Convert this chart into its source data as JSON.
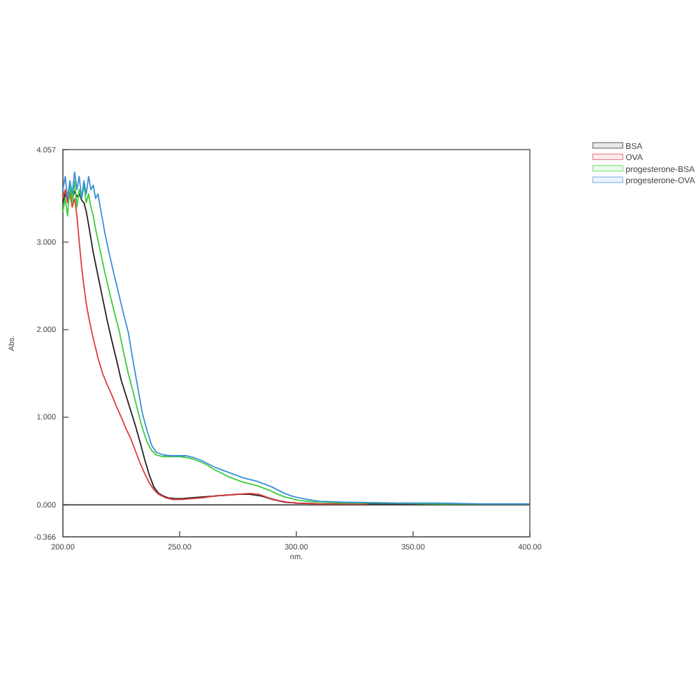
{
  "chart_data": {
    "type": "line",
    "xlabel": "nm.",
    "ylabel": "Abs.",
    "legend": "top right",
    "xlim": [
      200,
      400
    ],
    "ylim": [
      -0.366,
      4.057
    ],
    "xticks": [
      {
        "value": 200,
        "label": "200.00"
      },
      {
        "value": 250,
        "label": "250.00"
      },
      {
        "value": 300,
        "label": "300.00"
      },
      {
        "value": 350,
        "label": "350.00"
      },
      {
        "value": 400,
        "label": "400.00"
      }
    ],
    "yticks": [
      -0.366,
      {
        "value": 0,
        "label": "0.000"
      },
      {
        "value": 1,
        "label": "1.000"
      },
      {
        "value": 2,
        "label": "2.000"
      },
      {
        "value": 3,
        "label": "3.000"
      },
      4.057
    ],
    "ref_lines": [
      {
        "axis": "y",
        "value": 0,
        "color": "#555555"
      }
    ],
    "series": [
      {
        "name": "BSA",
        "color": "#222222",
        "x": [
          200,
          201,
          202,
          203,
          204,
          205,
          206,
          207,
          208,
          209,
          210,
          211,
          213,
          215,
          217,
          219,
          221,
          223,
          225,
          227,
          229,
          231,
          233,
          235,
          237,
          239,
          241,
          243,
          245,
          248,
          251,
          255,
          260,
          265,
          270,
          275,
          280,
          285,
          290,
          295,
          300,
          310,
          320,
          340,
          360,
          380,
          400
        ],
        "values": [
          3.45,
          3.55,
          3.48,
          3.6,
          3.5,
          3.58,
          3.52,
          3.55,
          3.48,
          3.45,
          3.35,
          3.2,
          2.88,
          2.62,
          2.36,
          2.1,
          1.87,
          1.65,
          1.42,
          1.25,
          1.08,
          0.91,
          0.72,
          0.52,
          0.34,
          0.2,
          0.13,
          0.1,
          0.08,
          0.07,
          0.07,
          0.08,
          0.09,
          0.1,
          0.11,
          0.12,
          0.12,
          0.1,
          0.06,
          0.03,
          0.02,
          0.01,
          0.01,
          0.01,
          0.01,
          0.01,
          0.01
        ]
      },
      {
        "name": "OVA",
        "color": "#e03c3c",
        "x": [
          200,
          201,
          202,
          203,
          204,
          205,
          206,
          207,
          208,
          209,
          210,
          211,
          212,
          213,
          215,
          217,
          219,
          221,
          223,
          225,
          227,
          229,
          231,
          233,
          235,
          237,
          239,
          241,
          244,
          247,
          251,
          255,
          260,
          265,
          270,
          275,
          280,
          284,
          288,
          292,
          296,
          300,
          310,
          330
        ],
        "values": [
          3.5,
          3.6,
          3.45,
          3.55,
          3.4,
          3.5,
          3.3,
          3.0,
          2.72,
          2.5,
          2.3,
          2.15,
          2.02,
          1.9,
          1.68,
          1.5,
          1.37,
          1.25,
          1.12,
          1.0,
          0.87,
          0.76,
          0.62,
          0.48,
          0.36,
          0.25,
          0.17,
          0.12,
          0.08,
          0.06,
          0.06,
          0.07,
          0.08,
          0.1,
          0.11,
          0.12,
          0.13,
          0.12,
          0.08,
          0.05,
          0.03,
          0.02,
          0.01,
          0.01
        ]
      },
      {
        "name": "progesterone-BSA",
        "color": "#3ccc3c",
        "x": [
          200,
          201,
          202,
          203,
          204,
          205,
          206,
          207,
          208,
          209,
          210,
          211,
          212,
          213,
          214,
          216,
          218,
          220,
          222,
          224,
          226,
          228,
          230,
          232,
          234,
          236,
          238,
          240,
          243,
          246,
          250,
          253,
          256,
          259,
          262,
          265,
          268,
          271,
          274,
          277,
          280,
          283,
          286,
          289,
          292,
          295,
          298,
          301,
          305,
          310,
          320,
          340,
          360,
          380,
          400
        ],
        "values": [
          3.35,
          3.5,
          3.3,
          3.65,
          3.45,
          3.7,
          3.4,
          3.6,
          3.5,
          3.65,
          3.45,
          3.55,
          3.4,
          3.3,
          3.15,
          2.9,
          2.65,
          2.42,
          2.2,
          2.0,
          1.74,
          1.5,
          1.3,
          1.08,
          0.88,
          0.72,
          0.62,
          0.57,
          0.55,
          0.55,
          0.55,
          0.54,
          0.52,
          0.49,
          0.45,
          0.4,
          0.36,
          0.32,
          0.29,
          0.26,
          0.24,
          0.22,
          0.19,
          0.16,
          0.12,
          0.09,
          0.07,
          0.05,
          0.04,
          0.03,
          0.02,
          0.02,
          0.01,
          0.01,
          0.01
        ]
      },
      {
        "name": "progesterone-OVA",
        "color": "#3a8fd9",
        "x": [
          200,
          201,
          202,
          203,
          204,
          205,
          206,
          207,
          208,
          209,
          210,
          211,
          212,
          213,
          214,
          215,
          216,
          217,
          218,
          220,
          222,
          224,
          226,
          228,
          230,
          232,
          234,
          236,
          238,
          240,
          243,
          246,
          250,
          253,
          256,
          259,
          262,
          265,
          268,
          271,
          274,
          277,
          280,
          283,
          286,
          289,
          292,
          295,
          298,
          301,
          305,
          310,
          320,
          340,
          360,
          380,
          400
        ],
        "values": [
          3.6,
          3.75,
          3.5,
          3.7,
          3.55,
          3.8,
          3.6,
          3.75,
          3.5,
          3.7,
          3.55,
          3.75,
          3.6,
          3.65,
          3.5,
          3.55,
          3.4,
          3.25,
          3.1,
          2.85,
          2.62,
          2.4,
          2.18,
          1.97,
          1.65,
          1.35,
          1.05,
          0.85,
          0.68,
          0.6,
          0.57,
          0.56,
          0.56,
          0.56,
          0.54,
          0.51,
          0.47,
          0.43,
          0.4,
          0.37,
          0.34,
          0.31,
          0.29,
          0.27,
          0.24,
          0.21,
          0.17,
          0.13,
          0.1,
          0.08,
          0.06,
          0.04,
          0.03,
          0.02,
          0.02,
          0.01,
          0.01
        ]
      }
    ]
  }
}
